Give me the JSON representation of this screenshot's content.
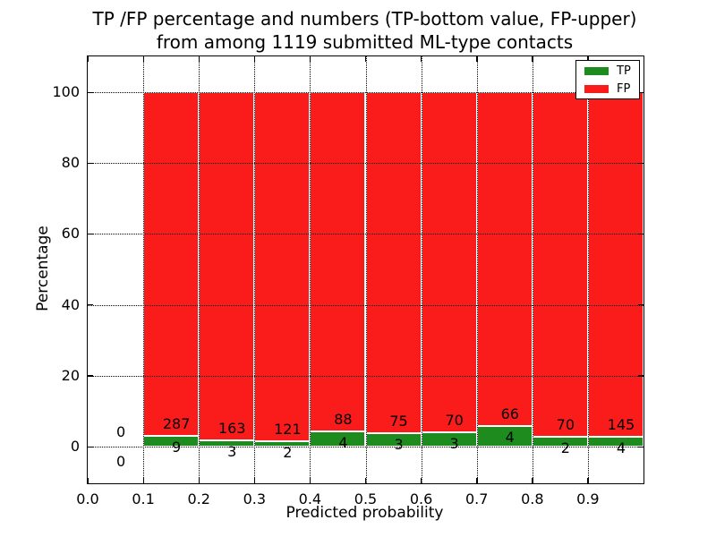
{
  "title": {
    "line1": "TP /FP percentage and numbers (TP-bottom value, FP-upper)",
    "line2": "from among 1119 submitted ML-type contacts"
  },
  "y_axis": {
    "label": "Percentage",
    "ticks": [
      0,
      20,
      40,
      60,
      80,
      100
    ]
  },
  "x_axis": {
    "label": "Predicted probability",
    "ticks": [
      "0.0",
      "0.1",
      "0.2",
      "0.3",
      "0.4",
      "0.5",
      "0.6",
      "0.7",
      "0.8",
      "0.9"
    ]
  },
  "legend": {
    "items": [
      {
        "label": "TP",
        "color": "#1e8b1e"
      },
      {
        "label": "FP",
        "color": "#fa1b1b"
      }
    ]
  },
  "colors": {
    "tp": "#1e8b1e",
    "fp": "#fa1b1b",
    "grid": "#000000",
    "bar_edge": "#ffffff",
    "background": "#ffffff",
    "text": "#000000"
  },
  "chart_data": {
    "type": "bar",
    "stacked": true,
    "normalized_to_pct": 100,
    "title": "TP /FP percentage and numbers (TP-bottom value, FP-upper) from among 1119 submitted ML-type contacts",
    "xlabel": "Predicted probability",
    "ylabel": "Percentage",
    "xlim": [
      0.0,
      1.0
    ],
    "ylim": [
      -11,
      110
    ],
    "grid": "dotted",
    "legend_position": "upper right",
    "total_contacts": 1119,
    "series": [
      {
        "name": "TP",
        "color": "#1e8b1e"
      },
      {
        "name": "FP",
        "color": "#fa1b1b"
      }
    ],
    "bins": [
      {
        "x_start": 0.0,
        "x_end": 0.1,
        "tp_count": 0,
        "fp_count": 0,
        "tp_pct": 0,
        "fp_pct": 0
      },
      {
        "x_start": 0.1,
        "x_end": 0.2,
        "tp_count": 9,
        "fp_count": 287,
        "tp_pct": 3.04,
        "fp_pct": 96.96
      },
      {
        "x_start": 0.2,
        "x_end": 0.3,
        "tp_count": 3,
        "fp_count": 163,
        "tp_pct": 1.81,
        "fp_pct": 98.19
      },
      {
        "x_start": 0.3,
        "x_end": 0.4,
        "tp_count": 2,
        "fp_count": 121,
        "tp_pct": 1.63,
        "fp_pct": 98.37
      },
      {
        "x_start": 0.4,
        "x_end": 0.5,
        "tp_count": 4,
        "fp_count": 88,
        "tp_pct": 4.35,
        "fp_pct": 95.65
      },
      {
        "x_start": 0.5,
        "x_end": 0.6,
        "tp_count": 3,
        "fp_count": 75,
        "tp_pct": 3.85,
        "fp_pct": 96.15
      },
      {
        "x_start": 0.6,
        "x_end": 0.7,
        "tp_count": 3,
        "fp_count": 70,
        "tp_pct": 4.11,
        "fp_pct": 95.89
      },
      {
        "x_start": 0.7,
        "x_end": 0.8,
        "tp_count": 4,
        "fp_count": 66,
        "tp_pct": 5.71,
        "fp_pct": 94.29
      },
      {
        "x_start": 0.8,
        "x_end": 0.9,
        "tp_count": 2,
        "fp_count": 70,
        "tp_pct": 2.78,
        "fp_pct": 97.22
      },
      {
        "x_start": 0.9,
        "x_end": 1.0,
        "tp_count": 4,
        "fp_count": 145,
        "tp_pct": 2.68,
        "fp_pct": 97.32
      }
    ]
  }
}
